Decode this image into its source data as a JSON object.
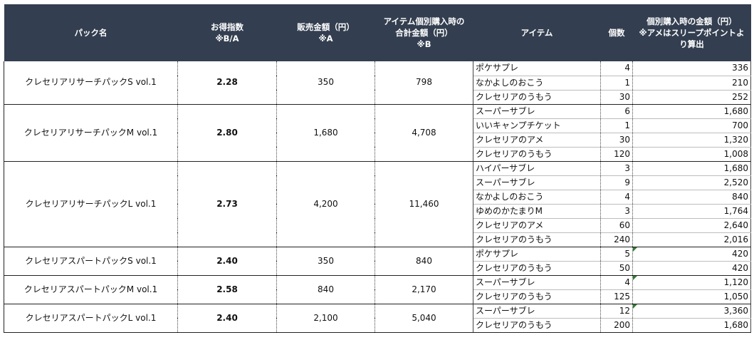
{
  "headers": {
    "pack_name": "パック名",
    "index_line1": "お得指数",
    "index_line2": "※B/A",
    "price_line1": "販売金額（円）",
    "price_line2": "※A",
    "total_line1": "アイテム個別購入時の",
    "total_line2": "合計金額（円）",
    "total_line3": "※B",
    "item": "アイテム",
    "qty": "個数",
    "amount_line1": "個別購入時の金額（円）",
    "amount_line2": "※アメはスリープポイントよ",
    "amount_line3": "り算出"
  },
  "colors": {
    "header_bg": "#333f50",
    "header_text": "#ffffff",
    "comment_flag": "#2e7d32"
  },
  "packs": [
    {
      "name": "クレセリアリサーチパックS vol.1",
      "index": "2.28",
      "price": "350",
      "total": "798",
      "items": [
        {
          "item": "ポケサプレ",
          "qty": "4",
          "amount": "336"
        },
        {
          "item": "なかよしのおこう",
          "qty": "1",
          "amount": "210"
        },
        {
          "item": "クレセリアのうもう",
          "qty": "30",
          "amount": "252"
        }
      ]
    },
    {
      "name": "クレセリアリサーチパックM vol.1",
      "index": "2.80",
      "price": "1,680",
      "total": "4,708",
      "items": [
        {
          "item": "スーパーサブレ",
          "qty": "6",
          "amount": "1,680"
        },
        {
          "item": "いいキャンプチケット",
          "qty": "1",
          "amount": "700"
        },
        {
          "item": "クレセリアのアメ",
          "qty": "30",
          "amount": "1,320"
        },
        {
          "item": "クレセリアのうもう",
          "qty": "120",
          "amount": "1,008"
        }
      ]
    },
    {
      "name": "クレセリアリサーチパックL vol.1",
      "index": "2.73",
      "price": "4,200",
      "total": "11,460",
      "items": [
        {
          "item": "ハイパーサブレ",
          "qty": "3",
          "amount": "1,680"
        },
        {
          "item": "スーパーサブレ",
          "qty": "9",
          "amount": "2,520"
        },
        {
          "item": "なかよしのおこう",
          "qty": "4",
          "amount": "840"
        },
        {
          "item": "ゆめのかたまりM",
          "qty": "3",
          "amount": "1,764"
        },
        {
          "item": "クレセリアのアメ",
          "qty": "60",
          "amount": "2,640"
        },
        {
          "item": "クレセリアのうもう",
          "qty": "240",
          "amount": "2,016"
        }
      ]
    },
    {
      "name": "クレセリアスパートパックS vol.1",
      "index": "2.40",
      "price": "350",
      "total": "840",
      "items": [
        {
          "item": "ポケサプレ",
          "qty": "5",
          "amount": "420",
          "flag": true
        },
        {
          "item": "クレセリアのうもう",
          "qty": "50",
          "amount": "420"
        }
      ]
    },
    {
      "name": "クレセリアスパートパックM vol.1",
      "index": "2.58",
      "price": "840",
      "total": "2,170",
      "items": [
        {
          "item": "スーパーサブレ",
          "qty": "4",
          "amount": "1,120",
          "flag": true
        },
        {
          "item": "クレセリアのうもう",
          "qty": "125",
          "amount": "1,050"
        }
      ]
    },
    {
      "name": "クレセリアスパートパックL vol.1",
      "index": "2.40",
      "price": "2,100",
      "total": "5,040",
      "items": [
        {
          "item": "スーパーサブレ",
          "qty": "12",
          "amount": "3,360",
          "flag": true
        },
        {
          "item": "クレセリアのうもう",
          "qty": "200",
          "amount": "1,680"
        }
      ]
    }
  ]
}
